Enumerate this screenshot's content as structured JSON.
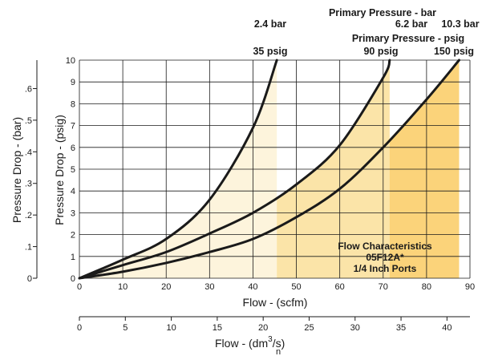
{
  "chart_data": {
    "type": "line",
    "xlabel": "Flow - (scfm)",
    "ylabel": "Pressure Drop - (psig)",
    "y2label": "Pressure Drop - (bar)",
    "x2label_main": "Flow - (dm",
    "x2label_sup": "3",
    "x2label_tail": "/s)",
    "x2label_sub": "n",
    "xlim": [
      0,
      90
    ],
    "ylim": [
      0,
      10
    ],
    "x2lim": [
      0,
      42.5
    ],
    "y2lim": [
      0,
      0.69
    ],
    "x_ticks": [
      "0",
      "10",
      "20",
      "30",
      "40",
      "50",
      "60",
      "70",
      "80",
      "90"
    ],
    "y_ticks": [
      "0",
      "1",
      "2",
      "3",
      "4",
      "5",
      "6",
      "7",
      "8",
      "9",
      "10"
    ],
    "y2_ticks": [
      "0",
      ".1",
      ".2",
      ".3",
      ".4",
      ".5",
      ".6"
    ],
    "x2_ticks": [
      "0",
      "5",
      "10",
      "15",
      "20",
      "25",
      "30",
      "35",
      "40"
    ],
    "grid": true,
    "header": {
      "bar_title": "Primary Pressure - bar",
      "psig_title": "Primary Pressure - psig",
      "bar_values": [
        "2.4 bar",
        "6.2 bar",
        "10.3 bar"
      ],
      "psig_values": [
        "35 psig",
        "90 psig",
        "150 psig"
      ]
    },
    "annotation": [
      "Flow Characteristics",
      "05F12A*",
      "1/4 Inch Ports"
    ],
    "series": [
      {
        "x": [
          0,
          10,
          20,
          30,
          40,
          45.5
        ],
        "y": [
          0,
          0.85,
          1.8,
          3.6,
          6.9,
          10
        ]
      },
      {
        "x": [
          0,
          10,
          20,
          30,
          40,
          50,
          60,
          70,
          71.5
        ],
        "y": [
          0,
          0.6,
          1.2,
          2.05,
          3.0,
          4.3,
          6.1,
          9.2,
          10
        ]
      },
      {
        "x": [
          0,
          10,
          20,
          30,
          40,
          50,
          60,
          70,
          80,
          87.5
        ],
        "y": [
          0,
          0.3,
          0.7,
          1.2,
          1.8,
          2.8,
          4.1,
          6.0,
          8.2,
          10
        ]
      }
    ],
    "colors": {
      "fill_inner": "#fdf4dc",
      "fill_mid": "#fbe4a8",
      "fill_outer": "#fbd37a",
      "line": "#1a1a1a",
      "grid": "#1a1a1a"
    }
  }
}
